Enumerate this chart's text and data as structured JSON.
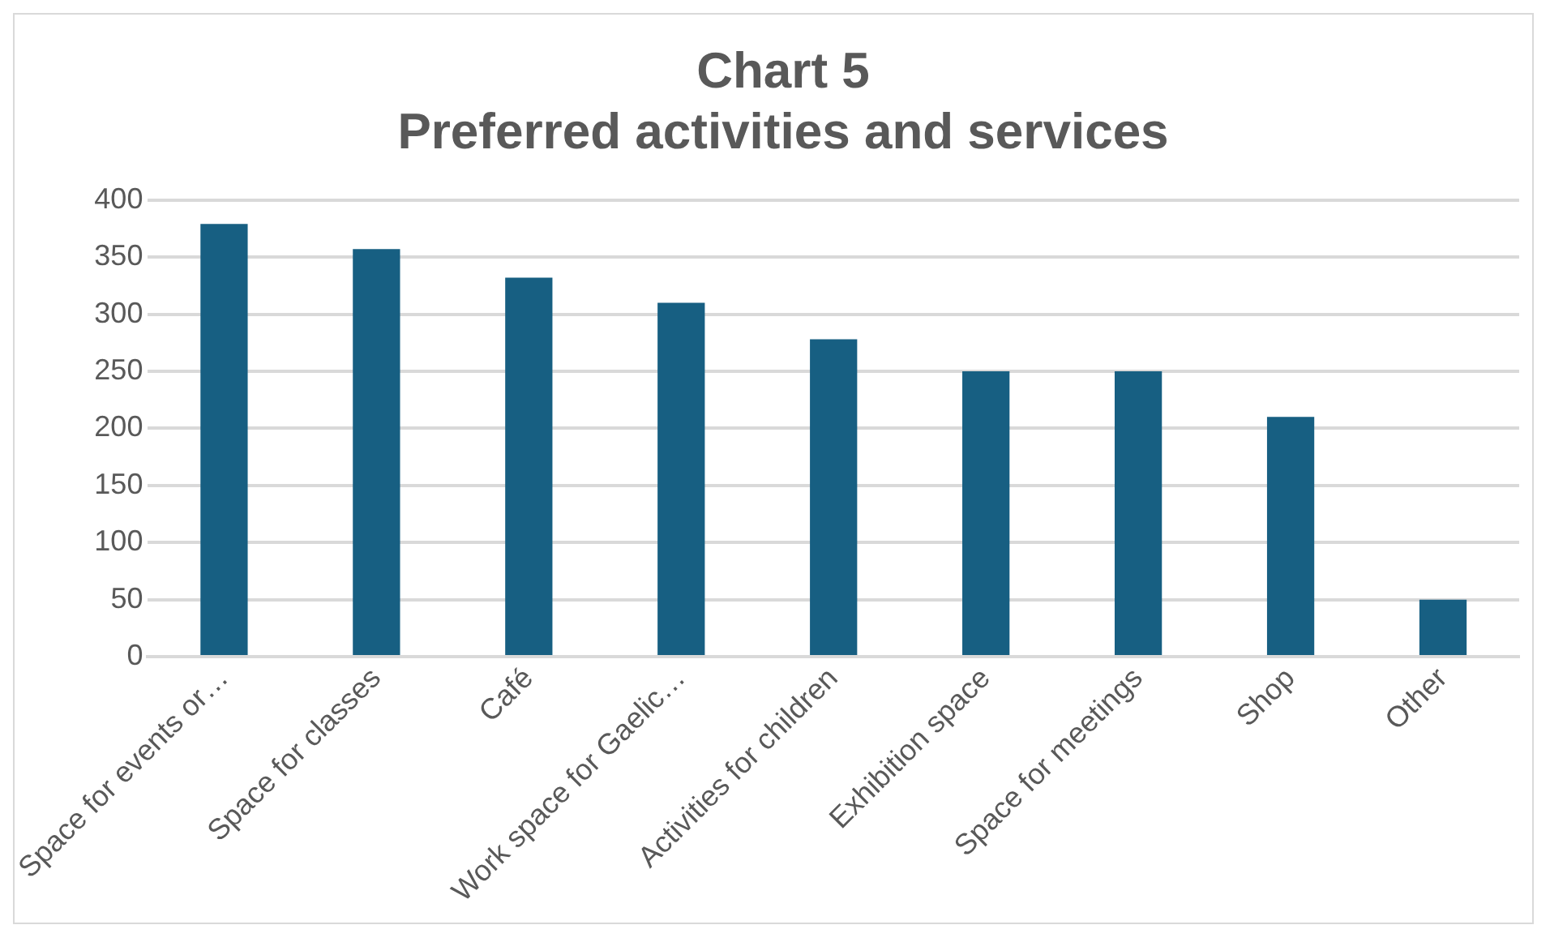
{
  "chart_data": {
    "type": "bar",
    "title": "Chart 5\nPreferred activities and services",
    "categories": [
      "Space for events or…",
      "Space for classes",
      "Café",
      "Work space for Gaelic…",
      "Activities for children",
      "Exhibition space",
      "Space for meetings",
      "Shop",
      "Other"
    ],
    "values": [
      379,
      357,
      332,
      310,
      278,
      250,
      250,
      210,
      50
    ],
    "color": "#175f82",
    "ylim": [
      0,
      400
    ],
    "yticks": [
      0,
      50,
      100,
      150,
      200,
      250,
      300,
      350,
      400
    ],
    "grid": "y"
  }
}
